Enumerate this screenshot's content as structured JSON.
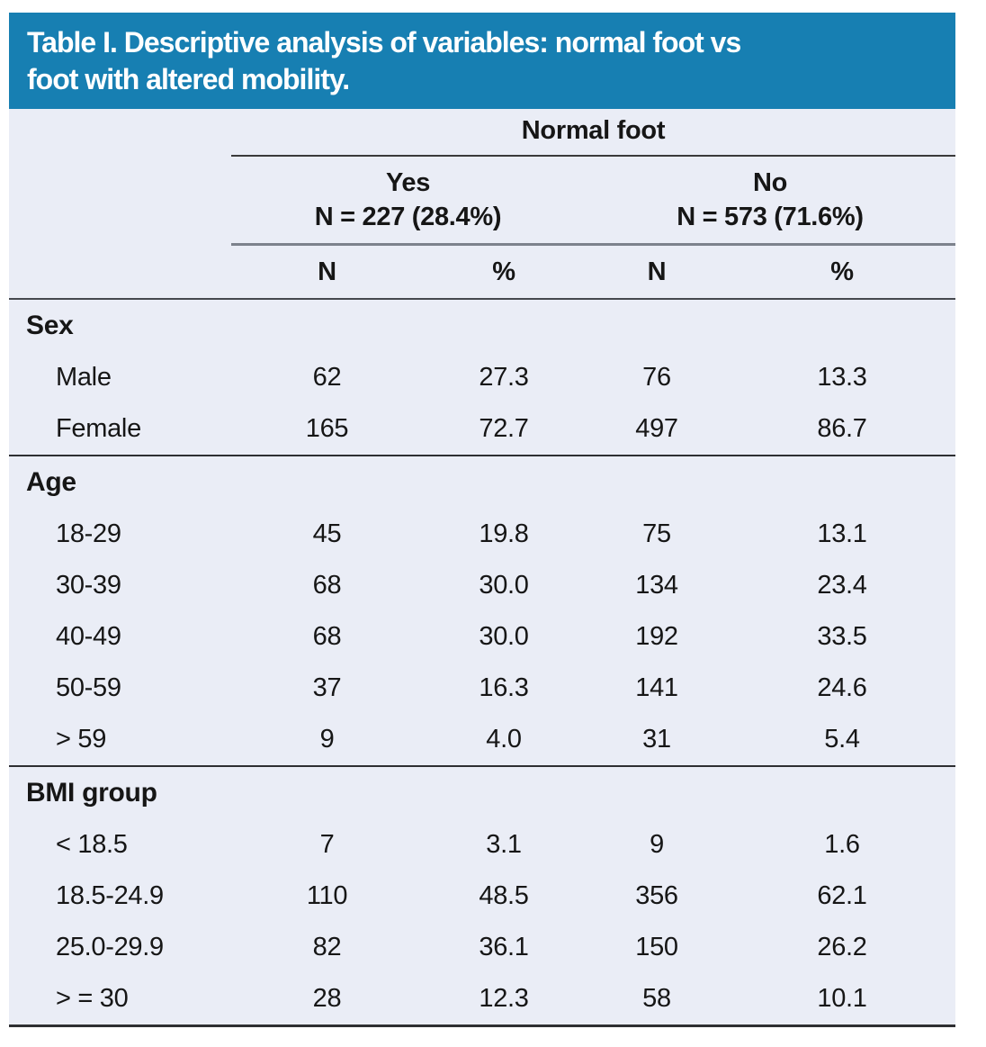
{
  "title": "Table I. Descriptive analysis of variables: normal foot vs foot with altered mobility.",
  "title_lines": [
    "Table I. Descriptive analysis of variables: normal foot vs",
    "foot with altered mobility."
  ],
  "colors": {
    "title_bar_bg": "#177fb2",
    "title_text": "#ffffff",
    "table_bg": "#eaedf6",
    "body_text": "#161616"
  },
  "table": {
    "top_header": "Normal foot",
    "col_groups": [
      {
        "label": "Yes",
        "sublabel": "N = 227 (28.4%)"
      },
      {
        "label": "No",
        "sublabel": "N = 573 (71.6%)"
      }
    ],
    "sub_headers": [
      "N",
      "%",
      "N",
      "%"
    ],
    "sections": [
      {
        "label": "Sex",
        "rows": [
          {
            "label": "Male",
            "values": [
              "62",
              "27.3",
              "76",
              "13.3"
            ]
          },
          {
            "label": "Female",
            "values": [
              "165",
              "72.7",
              "497",
              "86.7"
            ]
          }
        ]
      },
      {
        "label": "Age",
        "rows": [
          {
            "label": "18-29",
            "values": [
              "45",
              "19.8",
              "75",
              "13.1"
            ]
          },
          {
            "label": "30-39",
            "values": [
              "68",
              "30.0",
              "134",
              "23.4"
            ]
          },
          {
            "label": "40-49",
            "values": [
              "68",
              "30.0",
              "192",
              "33.5"
            ]
          },
          {
            "label": "50-59",
            "values": [
              "37",
              "16.3",
              "141",
              "24.6"
            ]
          },
          {
            "label": "> 59",
            "values": [
              "9",
              "4.0",
              "31",
              "5.4"
            ]
          }
        ]
      },
      {
        "label": "BMI group",
        "rows": [
          {
            "label": "< 18.5",
            "values": [
              "7",
              "3.1",
              "9",
              "1.6"
            ]
          },
          {
            "label": "18.5-24.9",
            "values": [
              "110",
              "48.5",
              "356",
              "62.1"
            ]
          },
          {
            "label": "25.0-29.9",
            "values": [
              "82",
              "36.1",
              "150",
              "26.2"
            ]
          },
          {
            "label": "> = 30",
            "values": [
              "28",
              "12.3",
              "58",
              "10.1"
            ]
          }
        ]
      }
    ]
  }
}
